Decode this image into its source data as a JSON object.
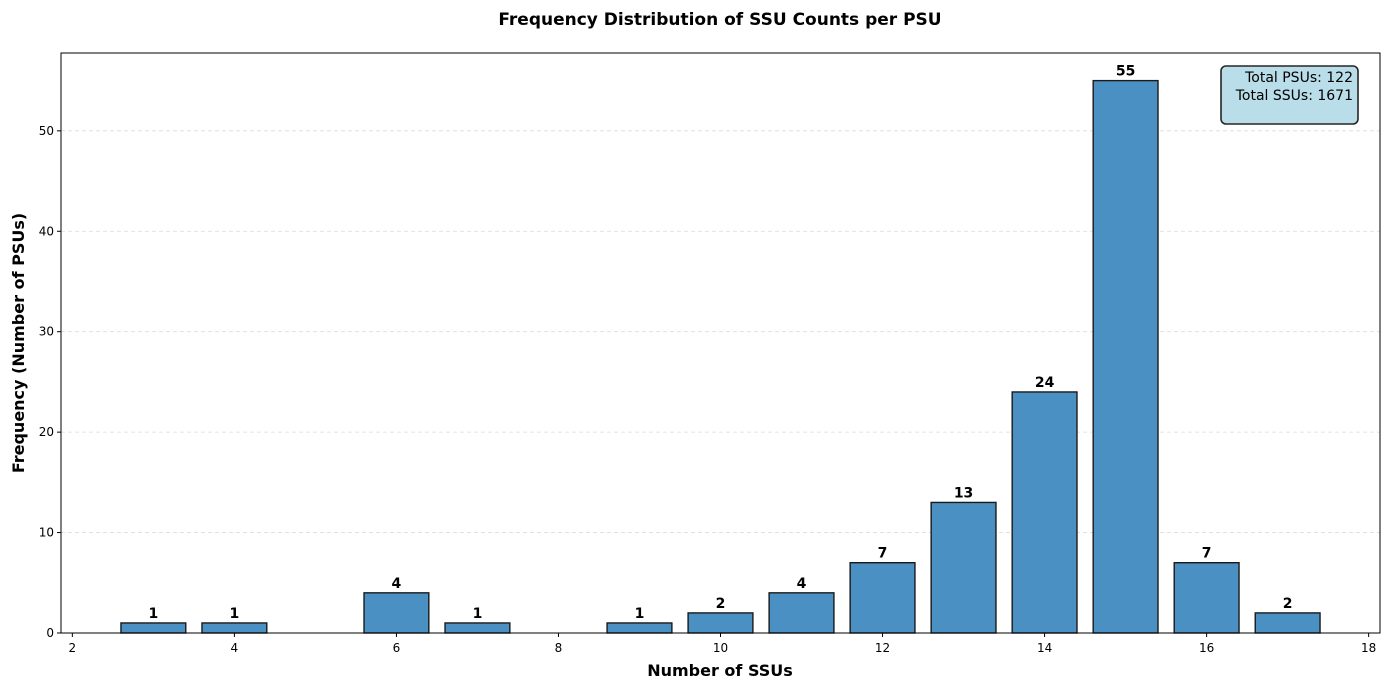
{
  "chart_data": {
    "type": "bar",
    "title": "Frequency Distribution of SSU Counts per PSU",
    "xlabel": "Number of SSUs",
    "ylabel": "Frequency (Number of PSUs)",
    "x": [
      3,
      4,
      6,
      7,
      9,
      10,
      11,
      12,
      13,
      14,
      15,
      16,
      17
    ],
    "values": [
      1,
      1,
      4,
      1,
      1,
      2,
      4,
      7,
      13,
      24,
      55,
      7,
      2
    ],
    "data_labels": [
      "1",
      "1",
      "4",
      "1",
      "1",
      "2",
      "4",
      "7",
      "13",
      "24",
      "55",
      "7",
      "2"
    ],
    "xlim": [
      1.86,
      18.14
    ],
    "ylim": [
      0,
      57.75
    ],
    "xticks": [
      2,
      4,
      6,
      8,
      10,
      12,
      14,
      16,
      18
    ],
    "yticks": [
      0,
      10,
      20,
      30,
      40,
      50
    ],
    "grid": "y-dashed",
    "bar_color": "#4a90c2",
    "edge_color": "#000000",
    "annotation": {
      "lines": [
        "Total PSUs: 122",
        "Total SSUs: 1671"
      ],
      "placement": "top-right",
      "fill": "#add8e6"
    }
  }
}
